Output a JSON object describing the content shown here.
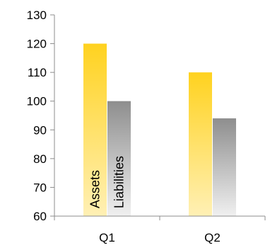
{
  "chart_data": {
    "type": "bar",
    "categories": [
      "Q1",
      "Q2"
    ],
    "series": [
      {
        "name": "Assets",
        "values": [
          120,
          110
        ],
        "color_top": "#FFD21F",
        "color_bottom": "#FFF0B5"
      },
      {
        "name": "Liabilities",
        "values": [
          100,
          94
        ],
        "color_top": "#8E8E8E",
        "color_bottom": "#F0F0F0"
      }
    ],
    "ylim": [
      60,
      130
    ],
    "yticks": [
      60,
      70,
      80,
      90,
      100,
      110,
      120,
      130
    ],
    "ytick_labels": [
      "60",
      "70",
      "80",
      "90",
      "100",
      "110",
      "120",
      "130"
    ],
    "grid": false,
    "legend": "none",
    "series_labels_in_bars": true,
    "title": "",
    "xlabel": "",
    "ylabel": ""
  }
}
